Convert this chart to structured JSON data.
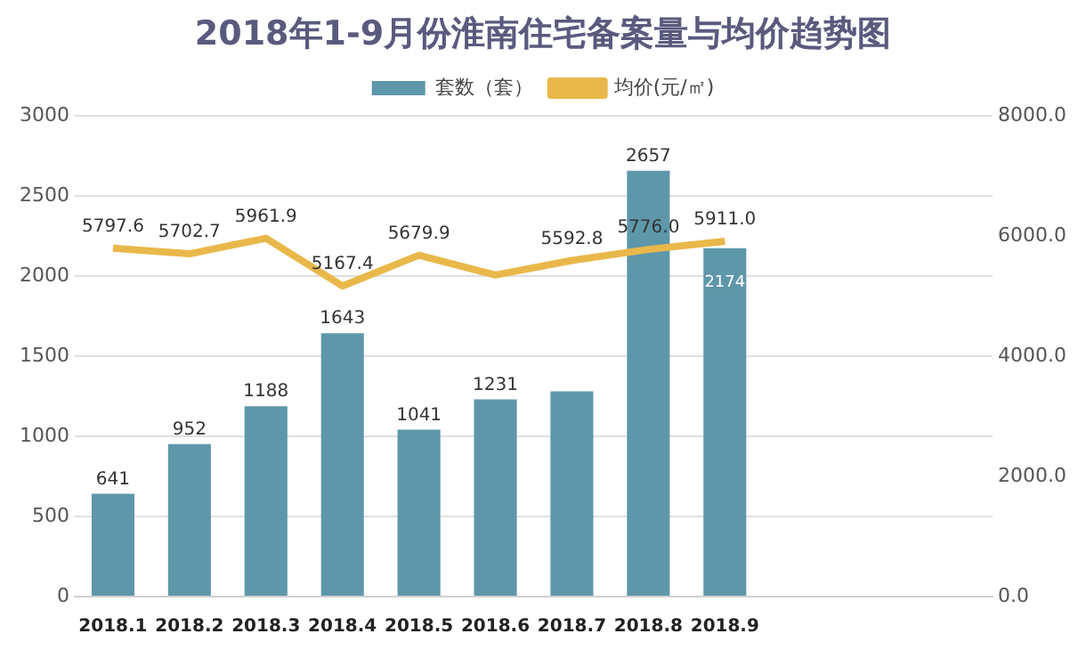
{
  "chart_data": {
    "type": "bar",
    "title": "2018年1-9月份淮南住宅备案量与均价趋势图",
    "categories": [
      "2018.1",
      "2018.2",
      "2018.3",
      "2018.4",
      "2018.5",
      "2018.6",
      "2018.7",
      "2018.8",
      "2018.9",
      null,
      null,
      null
    ],
    "series": [
      {
        "name": "套数（套）",
        "color": "#5e97aa",
        "values": [
          641,
          952,
          1188,
          1643,
          1041,
          1231,
          1280,
          2657,
          2174,
          null,
          null,
          null
        ],
        "value_labels": [
          "641",
          "952",
          "1188",
          "1643",
          "1041",
          "1231",
          null,
          "2657",
          "2174",
          null,
          null,
          null
        ]
      },
      {
        "name": "均价(元/㎡)",
        "type": "line",
        "axis": "y2",
        "color": "#e9b84a",
        "values": [
          5797.6,
          5702.7,
          5961.9,
          5167.4,
          5679.9,
          5350,
          5592.8,
          5776.0,
          5911.0,
          null,
          null,
          null
        ],
        "value_labels": [
          "5797.6",
          "5702.7",
          "5961.9",
          "5167.4",
          "5679.9",
          null,
          "5592.8",
          "5776.0",
          "5911.0",
          null,
          null,
          null
        ]
      }
    ],
    "ylim": [
      0,
      3000
    ],
    "yticks": [
      0,
      500,
      1000,
      1500,
      2000,
      2500,
      3000
    ],
    "y2lim": [
      0,
      8000
    ],
    "y2ticks": [
      {
        "value": 0,
        "label": "0.0"
      },
      {
        "value": 2000,
        "label": "2000.0"
      },
      {
        "value": 4000,
        "label": "4000.0"
      },
      {
        "value": 6000,
        "label": "6000.0"
      },
      {
        "value": 8000,
        "label": "8000.0"
      }
    ],
    "grid": "y",
    "legend": "top",
    "marker": "none"
  }
}
